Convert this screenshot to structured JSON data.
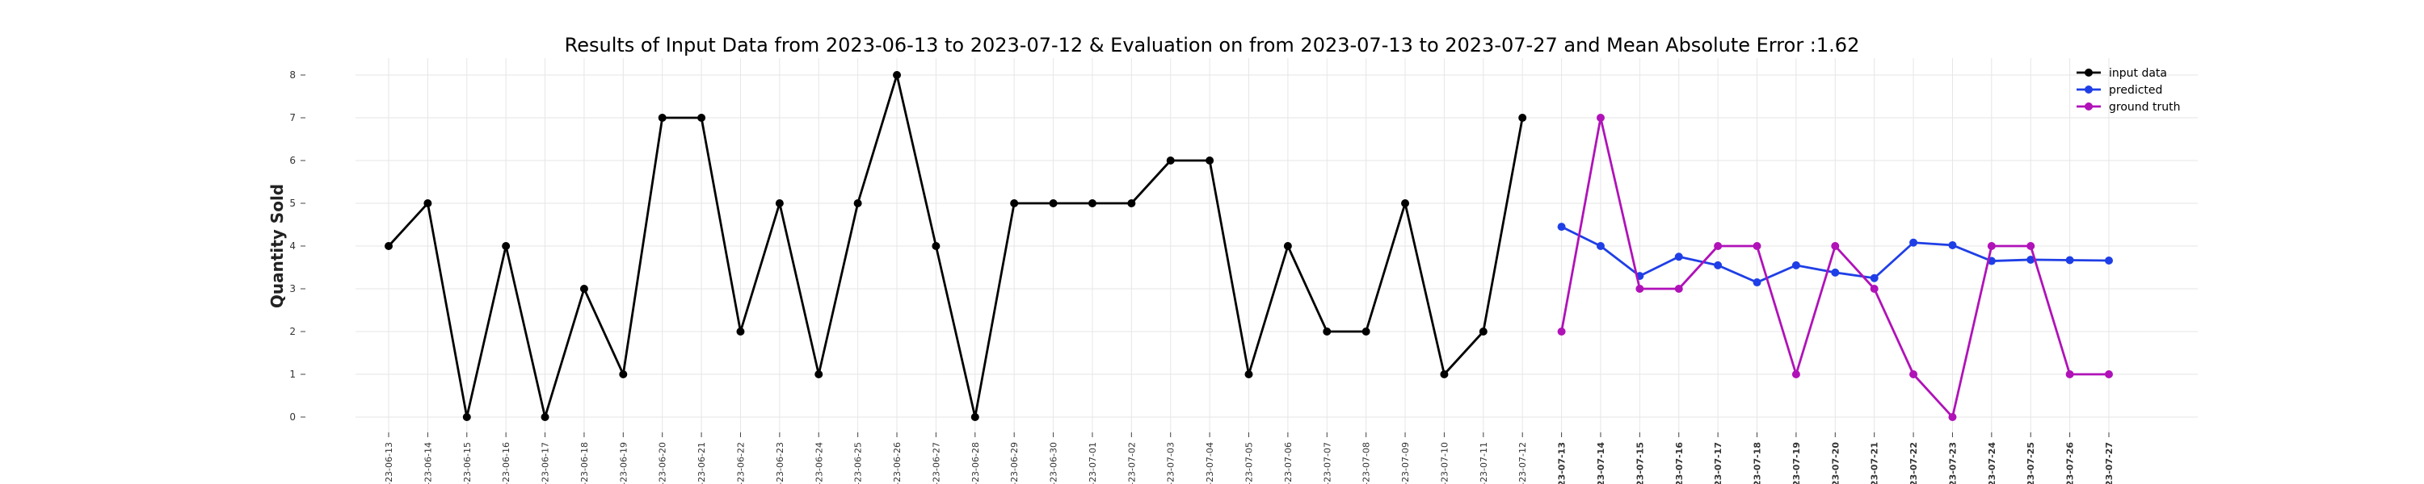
{
  "chart_data": {
    "type": "line",
    "title": "Results of Input Data from 2023-06-13 to 2023-07-12 & Evaluation on from 2023-07-13 to 2023-07-27 and Mean Absolute Error  :1.62",
    "xlabel": "",
    "ylabel": "Quantity Sold",
    "ylim": [
      0,
      8
    ],
    "yticks": [
      0,
      1,
      2,
      3,
      4,
      5,
      6,
      7,
      8
    ],
    "grid": true,
    "legend_position": "top-right",
    "x": [
      "2023-06-13",
      "2023-06-14",
      "2023-06-15",
      "2023-06-16",
      "2023-06-17",
      "2023-06-18",
      "2023-06-19",
      "2023-06-20",
      "2023-06-21",
      "2023-06-22",
      "2023-06-23",
      "2023-06-24",
      "2023-06-25",
      "2023-06-26",
      "2023-06-27",
      "2023-06-28",
      "2023-06-29",
      "2023-06-30",
      "2023-07-01",
      "2023-07-02",
      "2023-07-03",
      "2023-07-04",
      "2023-07-05",
      "2023-07-06",
      "2023-07-07",
      "2023-07-08",
      "2023-07-09",
      "2023-07-10",
      "2023-07-11",
      "2023-07-12",
      "2023-07-13",
      "2023-07-14",
      "2023-07-15",
      "2023-07-16",
      "2023-07-17",
      "2023-07-18",
      "2023-07-19",
      "2023-07-20",
      "2023-07-21",
      "2023-07-22",
      "2023-07-23",
      "2023-07-24",
      "2023-07-25",
      "2023-07-26",
      "2023-07-27"
    ],
    "xtick_labels": [
      "-23-06-13",
      "-23-06-14",
      "-23-06-15",
      "-23-06-16",
      "-23-06-17",
      "-23-06-18",
      "-23-06-19",
      "-23-06-20",
      "-23-06-21",
      "-23-06-22",
      "-23-06-23",
      "-23-06-24",
      "-23-06-25",
      "-23-06-26",
      "-23-06-27",
      "-23-06-28",
      "-23-06-29",
      "-23-06-30",
      "-23-07-01",
      "-23-07-02",
      "-23-07-03",
      "-23-07-04",
      "-23-07-05",
      "-23-07-06",
      "-23-07-07",
      "-23-07-08",
      "-23-07-09",
      "-23-07-10",
      "-23-07-11",
      "-23-07-12",
      "023-07-13",
      "023-07-14",
      "023-07-15",
      "023-07-16",
      "023-07-17",
      "023-07-18",
      "023-07-19",
      "023-07-20",
      "023-07-21",
      "023-07-22",
      "023-07-23",
      "023-07-24",
      "023-07-25",
      "023-07-26",
      "023-07-27"
    ],
    "series": [
      {
        "name": "input data",
        "color": "#000000",
        "x": [
          "2023-06-13",
          "2023-06-14",
          "2023-06-15",
          "2023-06-16",
          "2023-06-17",
          "2023-06-18",
          "2023-06-19",
          "2023-06-20",
          "2023-06-21",
          "2023-06-22",
          "2023-06-23",
          "2023-06-24",
          "2023-06-25",
          "2023-06-26",
          "2023-06-27",
          "2023-06-28",
          "2023-06-29",
          "2023-06-30",
          "2023-07-01",
          "2023-07-02",
          "2023-07-03",
          "2023-07-04",
          "2023-07-05",
          "2023-07-06",
          "2023-07-07",
          "2023-07-08",
          "2023-07-09",
          "2023-07-10",
          "2023-07-11",
          "2023-07-12"
        ],
        "values": [
          4,
          5,
          0,
          4,
          0,
          3,
          1,
          7,
          7,
          2,
          5,
          1,
          5,
          8,
          4,
          0,
          5,
          5,
          5,
          5,
          6,
          6,
          1,
          4,
          2,
          2,
          5,
          1,
          2,
          7
        ]
      },
      {
        "name": "predicted",
        "color": "#1f3fe6",
        "x": [
          "2023-07-13",
          "2023-07-14",
          "2023-07-15",
          "2023-07-16",
          "2023-07-17",
          "2023-07-18",
          "2023-07-19",
          "2023-07-20",
          "2023-07-21",
          "2023-07-22",
          "2023-07-23",
          "2023-07-24",
          "2023-07-25",
          "2023-07-26",
          "2023-07-27"
        ],
        "values": [
          4.45,
          4.0,
          3.3,
          3.75,
          3.55,
          3.15,
          3.55,
          3.38,
          3.25,
          4.08,
          4.02,
          3.65,
          3.68,
          3.67,
          3.66
        ]
      },
      {
        "name": "ground truth",
        "color": "#b012b8",
        "x": [
          "2023-07-13",
          "2023-07-14",
          "2023-07-15",
          "2023-07-16",
          "2023-07-17",
          "2023-07-18",
          "2023-07-19",
          "2023-07-20",
          "2023-07-21",
          "2023-07-22",
          "2023-07-23",
          "2023-07-24",
          "2023-07-25",
          "2023-07-26",
          "2023-07-27"
        ],
        "values": [
          2,
          7,
          3,
          3,
          4,
          4,
          1,
          4,
          3,
          1,
          0,
          4,
          4,
          1,
          1
        ]
      }
    ]
  }
}
